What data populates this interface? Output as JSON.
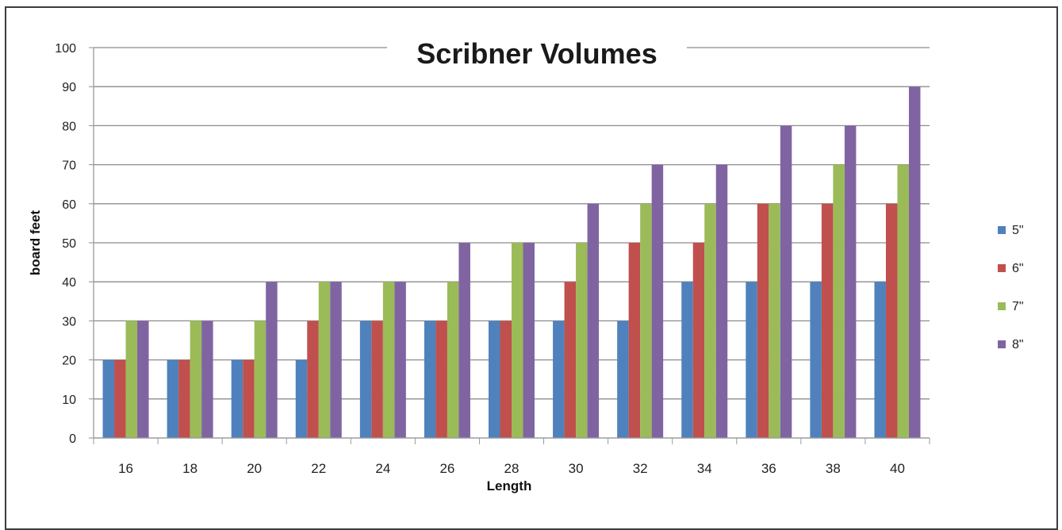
{
  "chart_data": {
    "type": "bar",
    "title": "Scribner Volumes",
    "xlabel": "Length",
    "ylabel": "board feet",
    "categories": [
      "16",
      "18",
      "20",
      "22",
      "24",
      "26",
      "28",
      "30",
      "32",
      "34",
      "36",
      "38",
      "40"
    ],
    "series": [
      {
        "name": "5\"",
        "color": "#4f81bd",
        "values": [
          20,
          20,
          20,
          20,
          30,
          30,
          30,
          30,
          30,
          40,
          40,
          40,
          40
        ]
      },
      {
        "name": "6\"",
        "color": "#c0504d",
        "values": [
          20,
          20,
          20,
          30,
          30,
          30,
          30,
          40,
          50,
          50,
          60,
          60,
          60
        ]
      },
      {
        "name": "7\"",
        "color": "#9bbb59",
        "values": [
          30,
          30,
          30,
          40,
          40,
          40,
          50,
          50,
          60,
          60,
          60,
          70,
          70
        ]
      },
      {
        "name": "8\"",
        "color": "#8064a2",
        "values": [
          30,
          30,
          40,
          40,
          40,
          50,
          50,
          60,
          70,
          70,
          80,
          80,
          90
        ]
      }
    ],
    "ylim": [
      0,
      100
    ],
    "yticks": [
      0,
      10,
      20,
      30,
      40,
      50,
      60,
      70,
      80,
      90,
      100
    ],
    "grid": true,
    "legend": "right"
  }
}
